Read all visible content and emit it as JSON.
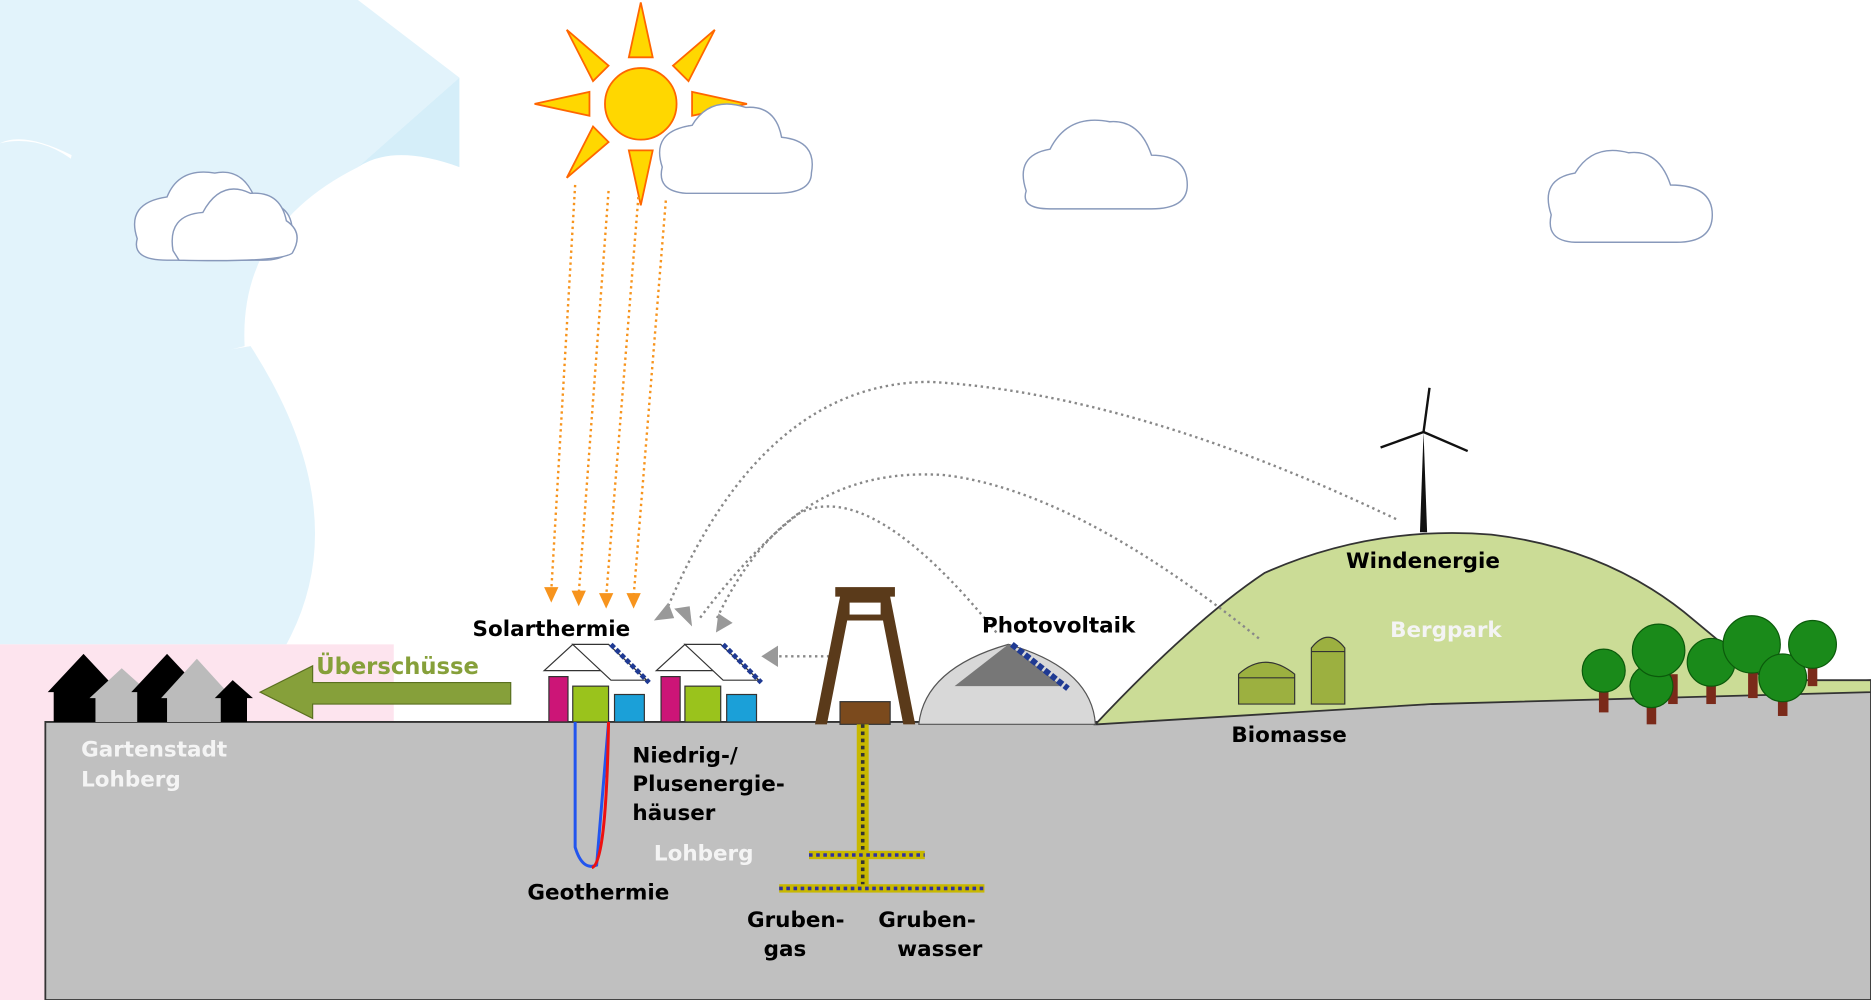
{
  "labels": {
    "solarthermie": "Solarthermie",
    "ueberschuesse": "Überschüsse",
    "photovoltaik": "Photovoltaik",
    "windenergie": "Windenergie",
    "bergpark": "Bergpark",
    "biomasse": "Biomasse",
    "gartenstadt": [
      "Gartenstadt",
      "Lohberg"
    ],
    "haeuser": [
      "Niedrig-/",
      "Plusenergie-",
      "häuser"
    ],
    "lohberg": "Lohberg",
    "geothermie": "Geothermie",
    "grubengas": [
      "Gruben-",
      "gas"
    ],
    "grubenwasser": [
      "Gruben-",
      "wasser"
    ]
  }
}
